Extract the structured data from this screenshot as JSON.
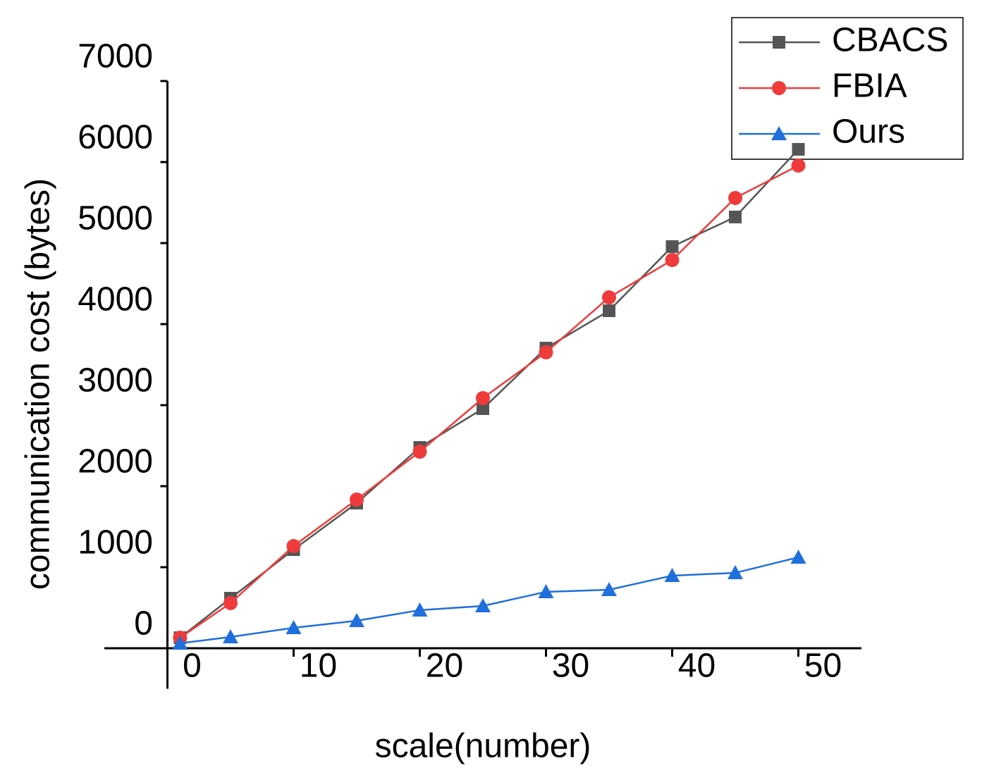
{
  "chart_data": {
    "type": "line",
    "x_label": "scale(number)",
    "y_label": "communication cost (bytes)",
    "x": [
      1,
      5,
      10,
      15,
      20,
      25,
      30,
      35,
      40,
      45,
      50
    ],
    "series": [
      {
        "name": "CBACS",
        "color": "#555555",
        "marker": "square",
        "values": [
          130,
          617,
          1217,
          1791,
          2478,
          2957,
          3704,
          4165,
          4957,
          5322,
          6157
        ]
      },
      {
        "name": "FBIA",
        "color": "#ef3b3b",
        "marker": "circle",
        "values": [
          130,
          557,
          1261,
          1835,
          2426,
          3087,
          3652,
          4330,
          4791,
          5557,
          5957
        ]
      },
      {
        "name": "Ours",
        "color": "#1f6fdc",
        "marker": "triangle",
        "values": [
          61,
          139,
          252,
          339,
          470,
          522,
          696,
          722,
          896,
          930,
          1122
        ]
      }
    ],
    "xlim": [
      -5,
      55
    ],
    "xticks": [
      0,
      10,
      20,
      30,
      40,
      50
    ],
    "ylim": [
      -500,
      7000
    ],
    "yticks": [
      0,
      1000,
      2000,
      3000,
      4000,
      5000,
      6000,
      7000
    ],
    "legend": "upper right",
    "grid": false
  }
}
